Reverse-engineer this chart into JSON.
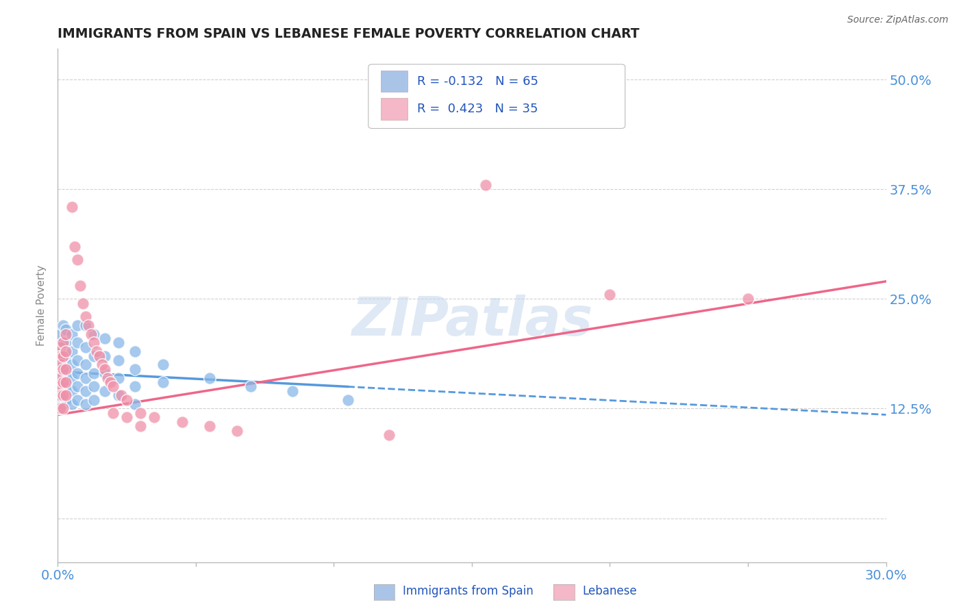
{
  "title": "IMMIGRANTS FROM SPAIN VS LEBANESE FEMALE POVERTY CORRELATION CHART",
  "source": "Source: ZipAtlas.com",
  "ylabel": "Female Poverty",
  "xlim": [
    0.0,
    0.3
  ],
  "ylim": [
    -0.05,
    0.535
  ],
  "yticks": [
    0.0,
    0.125,
    0.25,
    0.375,
    0.5
  ],
  "ytick_labels": [
    "",
    "12.5%",
    "25.0%",
    "37.5%",
    "50.0%"
  ],
  "background_color": "#ffffff",
  "grid_color": "#d0d0d0",
  "title_color": "#222222",
  "label_color": "#4a90d9",
  "legend_color1": "#aac4e8",
  "legend_color2": "#f4b8c8",
  "dot_color1": "#88b8e8",
  "dot_color2": "#f090a8",
  "line_color1": "#5599dd",
  "line_color2": "#ee6688",
  "watermark": "ZIPatlas",
  "spain_dots": [
    [
      0.001,
      0.21
    ],
    [
      0.001,
      0.195
    ],
    [
      0.001,
      0.185
    ],
    [
      0.001,
      0.175
    ],
    [
      0.001,
      0.165
    ],
    [
      0.001,
      0.16
    ],
    [
      0.001,
      0.155
    ],
    [
      0.001,
      0.15
    ],
    [
      0.001,
      0.145
    ],
    [
      0.001,
      0.14
    ],
    [
      0.001,
      0.135
    ],
    [
      0.001,
      0.125
    ],
    [
      0.002,
      0.22
    ],
    [
      0.002,
      0.2
    ],
    [
      0.002,
      0.185
    ],
    [
      0.002,
      0.175
    ],
    [
      0.002,
      0.165
    ],
    [
      0.002,
      0.155
    ],
    [
      0.002,
      0.145
    ],
    [
      0.002,
      0.13
    ],
    [
      0.003,
      0.215
    ],
    [
      0.003,
      0.2
    ],
    [
      0.003,
      0.185
    ],
    [
      0.003,
      0.17
    ],
    [
      0.003,
      0.16
    ],
    [
      0.003,
      0.15
    ],
    [
      0.003,
      0.135
    ],
    [
      0.005,
      0.21
    ],
    [
      0.005,
      0.19
    ],
    [
      0.005,
      0.175
    ],
    [
      0.005,
      0.16
    ],
    [
      0.005,
      0.145
    ],
    [
      0.005,
      0.13
    ],
    [
      0.007,
      0.22
    ],
    [
      0.007,
      0.2
    ],
    [
      0.007,
      0.18
    ],
    [
      0.007,
      0.165
    ],
    [
      0.007,
      0.15
    ],
    [
      0.007,
      0.135
    ],
    [
      0.01,
      0.22
    ],
    [
      0.01,
      0.195
    ],
    [
      0.01,
      0.175
    ],
    [
      0.01,
      0.16
    ],
    [
      0.01,
      0.145
    ],
    [
      0.01,
      0.13
    ],
    [
      0.013,
      0.21
    ],
    [
      0.013,
      0.185
    ],
    [
      0.013,
      0.165
    ],
    [
      0.013,
      0.15
    ],
    [
      0.013,
      0.135
    ],
    [
      0.017,
      0.205
    ],
    [
      0.017,
      0.185
    ],
    [
      0.017,
      0.165
    ],
    [
      0.017,
      0.145
    ],
    [
      0.022,
      0.2
    ],
    [
      0.022,
      0.18
    ],
    [
      0.022,
      0.16
    ],
    [
      0.022,
      0.14
    ],
    [
      0.028,
      0.19
    ],
    [
      0.028,
      0.17
    ],
    [
      0.028,
      0.15
    ],
    [
      0.028,
      0.13
    ],
    [
      0.038,
      0.175
    ],
    [
      0.038,
      0.155
    ],
    [
      0.055,
      0.16
    ],
    [
      0.07,
      0.15
    ],
    [
      0.085,
      0.145
    ],
    [
      0.105,
      0.135
    ]
  ],
  "lebanese_dots": [
    [
      0.001,
      0.195
    ],
    [
      0.001,
      0.185
    ],
    [
      0.001,
      0.175
    ],
    [
      0.001,
      0.16
    ],
    [
      0.001,
      0.15
    ],
    [
      0.001,
      0.14
    ],
    [
      0.001,
      0.125
    ],
    [
      0.002,
      0.2
    ],
    [
      0.002,
      0.185
    ],
    [
      0.002,
      0.17
    ],
    [
      0.002,
      0.155
    ],
    [
      0.002,
      0.14
    ],
    [
      0.002,
      0.125
    ],
    [
      0.003,
      0.21
    ],
    [
      0.003,
      0.19
    ],
    [
      0.003,
      0.17
    ],
    [
      0.003,
      0.155
    ],
    [
      0.003,
      0.14
    ],
    [
      0.005,
      0.355
    ],
    [
      0.006,
      0.31
    ],
    [
      0.007,
      0.295
    ],
    [
      0.008,
      0.265
    ],
    [
      0.009,
      0.245
    ],
    [
      0.01,
      0.23
    ],
    [
      0.011,
      0.22
    ],
    [
      0.012,
      0.21
    ],
    [
      0.013,
      0.2
    ],
    [
      0.014,
      0.19
    ],
    [
      0.015,
      0.185
    ],
    [
      0.016,
      0.175
    ],
    [
      0.017,
      0.17
    ],
    [
      0.018,
      0.16
    ],
    [
      0.019,
      0.155
    ],
    [
      0.02,
      0.15
    ],
    [
      0.023,
      0.14
    ],
    [
      0.025,
      0.135
    ],
    [
      0.03,
      0.12
    ],
    [
      0.035,
      0.115
    ],
    [
      0.045,
      0.11
    ],
    [
      0.055,
      0.105
    ],
    [
      0.065,
      0.1
    ],
    [
      0.12,
      0.095
    ],
    [
      0.155,
      0.38
    ],
    [
      0.02,
      0.12
    ],
    [
      0.025,
      0.115
    ],
    [
      0.03,
      0.105
    ],
    [
      0.2,
      0.255
    ],
    [
      0.25,
      0.25
    ]
  ],
  "spain_line_solid": [
    [
      0.0,
      0.167
    ],
    [
      0.105,
      0.15
    ]
  ],
  "spain_line_dashed": [
    [
      0.105,
      0.15
    ],
    [
      0.3,
      0.118
    ]
  ],
  "lebanese_line": [
    [
      0.0,
      0.118
    ],
    [
      0.3,
      0.27
    ]
  ]
}
